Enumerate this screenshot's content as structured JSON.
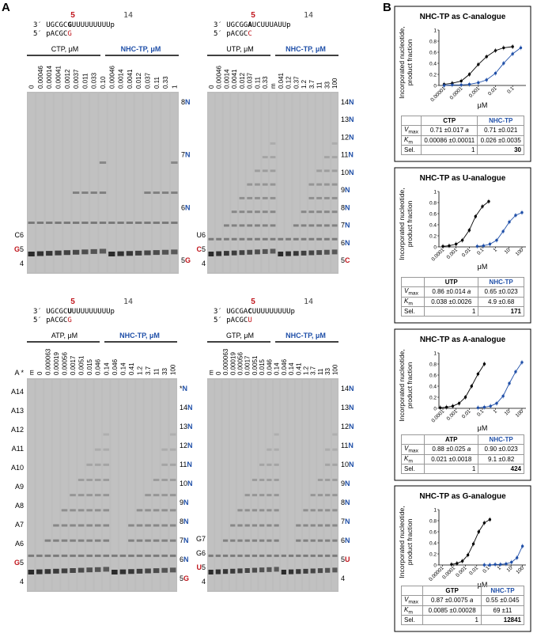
{
  "panel_labels": {
    "a": "A",
    "b": "B"
  },
  "colors": {
    "red": "#c0141b",
    "blue": "#1f4fa8",
    "gel_bg": "#bdbdbd"
  },
  "gels": [
    {
      "id": "C",
      "template": {
        "prefix": "3′ UGCGC",
        "bold": "G",
        "suffix": "UUUUUUUUUp",
        "pos5": "5",
        "pos14": "14"
      },
      "primer": {
        "prefix": "5′ pACGC",
        "last": "G"
      },
      "left_header": "CTP, μM",
      "right_header": "NHC-TP, μM",
      "left_lanes": [
        "0",
        "0.00046",
        "0.00014",
        "0.00041",
        "0.0012",
        "0.0037",
        "0.011",
        "0.033",
        "0.10"
      ],
      "right_lanes": [
        "0.00046",
        "0.0014",
        "0.0041",
        "0.012",
        "0.037",
        "0.11",
        "0.33",
        "1"
      ],
      "left_bands": [
        {
          "t": "C6"
        },
        {
          "t": "G5",
          "red": "G",
          "rest": "5"
        },
        {
          "t": "4"
        }
      ],
      "right_bands": [
        {
          "t": "8N"
        },
        {
          "t": "7N"
        },
        {
          "t": "6N"
        },
        {
          "t": "5G",
          "num": "5",
          "red": "G"
        }
      ]
    },
    {
      "id": "U",
      "template": {
        "prefix": "3′ UGCGG",
        "bold": "A",
        "suffix": "UCUUUAUUp",
        "pos5": "5",
        "pos14": "14"
      },
      "primer": {
        "prefix": "5′ pACGC",
        "last": "C"
      },
      "left_header": "UTP, μM",
      "right_header": "NHC-TP, μM",
      "left_lanes": [
        "0",
        "0.00046",
        "0.0014",
        "0.0041",
        "0.012",
        "0.037",
        "0.11",
        "0.33",
        "m"
      ],
      "right_lanes": [
        "0.041",
        "0.12",
        "0.37",
        "1.2",
        "3.7",
        "11",
        "33",
        "100"
      ],
      "left_bands": [
        {
          "t": "U6"
        },
        {
          "t": "C5",
          "red": "C",
          "rest": "5"
        },
        {
          "t": "4"
        }
      ],
      "right_bands": [
        {
          "t": "14N"
        },
        {
          "t": "13N"
        },
        {
          "t": "12N"
        },
        {
          "t": "11N"
        },
        {
          "t": "10N"
        },
        {
          "t": "9N"
        },
        {
          "t": "8N"
        },
        {
          "t": "7N"
        },
        {
          "t": "6N"
        },
        {
          "t": "5C",
          "num": "5",
          "red": "C"
        }
      ]
    },
    {
      "id": "A",
      "template": {
        "prefix": "3′ UGCGC",
        "bold": "U",
        "suffix": "UUUUUUUUUp",
        "pos5": "5",
        "pos14": "14"
      },
      "primer": {
        "prefix": "5′ pACGC",
        "last": "G"
      },
      "left_header": "ATP, μM",
      "right_header": "NHC-TP, μM",
      "left_lanes": [
        "m",
        "0",
        "0.000063",
        "0.00019",
        "0.00056",
        "0.0017",
        "0.0051",
        "0.015",
        "0.046",
        "0.14"
      ],
      "right_lanes": [
        "0.046",
        "0.14",
        "0.41",
        "1.2",
        "3.7",
        "11",
        "33",
        "100"
      ],
      "left_bands": [
        {
          "t": "A *"
        },
        {
          "t": "A14"
        },
        {
          "t": "A13"
        },
        {
          "t": "A12"
        },
        {
          "t": "A11"
        },
        {
          "t": "A10"
        },
        {
          "t": "A9"
        },
        {
          "t": "A8"
        },
        {
          "t": "A7"
        },
        {
          "t": "A6"
        },
        {
          "t": "G5",
          "red": "G",
          "rest": "5"
        },
        {
          "t": "4"
        }
      ],
      "right_bands": [
        {
          "t": "*N"
        },
        {
          "t": "14N"
        },
        {
          "t": "13N"
        },
        {
          "t": "12N"
        },
        {
          "t": "11N"
        },
        {
          "t": "10N"
        },
        {
          "t": "9N"
        },
        {
          "t": "8N"
        },
        {
          "t": "7N"
        },
        {
          "t": "6N"
        },
        {
          "t": "5G",
          "num": "5",
          "red": "G"
        }
      ]
    },
    {
      "id": "G",
      "template": {
        "prefix": "3′ UGCGA",
        "bold": "C",
        "suffix": "UUUUUUUUUp",
        "pos5": "5",
        "pos14": "14"
      },
      "primer": {
        "prefix": "5′ pACGC",
        "last": "U"
      },
      "left_header": "GTP, μM",
      "right_header": "NHC-TP, μM",
      "left_lanes": [
        "m",
        "0",
        "0.000063",
        "0.00019",
        "0.00056",
        "0.0017",
        "0.0051",
        "0.015",
        "0.046",
        "0.14"
      ],
      "right_lanes": [
        "0.046",
        "0.14",
        "0.41",
        "1.2",
        "3.7",
        "11",
        "33",
        "100"
      ],
      "left_bands": [
        {
          "t": "G7"
        },
        {
          "t": "G6"
        },
        {
          "t": "U5",
          "red": "U",
          "rest": "5"
        },
        {
          "t": "4"
        }
      ],
      "right_bands": [
        {
          "t": "14N"
        },
        {
          "t": "13N"
        },
        {
          "t": "12N"
        },
        {
          "t": "11N"
        },
        {
          "t": "10N"
        },
        {
          "t": "9N"
        },
        {
          "t": "8N"
        },
        {
          "t": "7N"
        },
        {
          "t": "6N"
        },
        {
          "t": "5U",
          "num": "5",
          "red": "U"
        },
        {
          "t": "4"
        }
      ]
    }
  ],
  "kinetics": [
    {
      "title": "NHC-TP as C-analogue",
      "ylabel1": "Incorporated nucleotide,",
      "ylabel2": "product fraction",
      "xlabel": "μM",
      "xticks": [
        "0.00001",
        "0.0001",
        "0.001",
        "0.01",
        "0.1"
      ],
      "yticks": [
        "0",
        "0.2",
        "0.4",
        "0.6",
        "0.8",
        "1"
      ],
      "table": {
        "col1": "CTP",
        "col2": "NHC-TP",
        "rows": [
          {
            "label": "V",
            "sub": "max",
            "v1": "0.71 ±0.017",
            "sup": "a",
            "v2": "0.71 ±0.021"
          },
          {
            "label": "K",
            "sub": "m",
            "v1": "0.00086 ±0.00011",
            "v2": "0.026 ±0.0035"
          },
          {
            "label": "Sel.",
            "v1": "1",
            "v2": "30"
          }
        ]
      }
    },
    {
      "title": "NHC-TP as U-analogue",
      "ylabel1": "Incorporated nucleotide,",
      "ylabel2": "product fraction",
      "xlabel": "μM",
      "xticks": [
        "0.0001",
        "0.001",
        "0.01",
        "0.1",
        "1",
        "10",
        "100"
      ],
      "yticks": [
        "0",
        "0.2",
        "0.4",
        "0.6",
        "0.8",
        "1"
      ],
      "table": {
        "col1": "UTP",
        "col2": "NHC-TP",
        "rows": [
          {
            "label": "V",
            "sub": "max",
            "v1": "0.86 ±0.014",
            "sup": "a",
            "v2": "0.65 ±0.023"
          },
          {
            "label": "K",
            "sub": "m",
            "v1": "0.038 ±0.0026",
            "v2": "4.9 ±0.68"
          },
          {
            "label": "Sel.",
            "v1": "1",
            "v2": "171"
          }
        ]
      }
    },
    {
      "title": "NHC-TP as A-analogue",
      "ylabel1": "Incorporated nucleotide,",
      "ylabel2": "product fraction",
      "xlabel": "μM",
      "xticks": [
        "0.0001",
        "0.001",
        "0.01",
        "0.1",
        "1",
        "10",
        "100"
      ],
      "yticks": [
        "0",
        "0.2",
        "0.4",
        "0.6",
        "0.8",
        "1"
      ],
      "table": {
        "col1": "ATP",
        "col2": "NHC-TP",
        "rows": [
          {
            "label": "V",
            "sub": "max",
            "v1": "0.88 ±0.025",
            "sup": "a",
            "v2": "0.90 ±0.023"
          },
          {
            "label": "K",
            "sub": "m",
            "v1": "0.021 ±0.0018",
            "v2": "9.1 ±0.82"
          },
          {
            "label": "Sel.",
            "v1": "1",
            "v2": "424"
          }
        ]
      }
    },
    {
      "title": "NHC-TP as G-analogue",
      "ylabel1": "Incorporated nucleotide,",
      "ylabel2": "product fraction",
      "xlabel": "μM",
      "xticks": [
        "0.00001",
        "0.0001",
        "0.001",
        "0.01",
        "0.1",
        "1",
        "10",
        "100"
      ],
      "yticks": [
        "0",
        "0.2",
        "0.4",
        "0.6",
        "0.8",
        "1"
      ],
      "table": {
        "col1": "GTP",
        "col2": "NHC-TP",
        "rows": [
          {
            "label": "V",
            "sub": "max",
            "v1": "0.87 ±0.0075",
            "sup": "a",
            "v2": "0.55 ±0.045"
          },
          {
            "label": "K",
            "sub": "m",
            "v1": "0.0085 ±0.00028",
            "v2": "69 ±11"
          },
          {
            "label": "Sel.",
            "v1": "1",
            "v2": "12841"
          }
        ]
      }
    }
  ],
  "chart_data": [
    {
      "type": "scatter",
      "title": "NHC-TP as C-analogue",
      "xlabel": "μM",
      "ylabel": "Incorporated nucleotide, product fraction",
      "xscale": "log",
      "xlim": [
        5e-06,
        0.6
      ],
      "ylim": [
        0,
        1
      ],
      "series": [
        {
          "name": "CTP",
          "color": "#000000",
          "x": [
            1e-05,
            3e-05,
            0.0001,
            0.0003,
            0.001,
            0.003,
            0.01,
            0.03,
            0.1
          ],
          "y": [
            0.02,
            0.04,
            0.08,
            0.2,
            0.38,
            0.52,
            0.63,
            0.68,
            0.7
          ]
        },
        {
          "name": "NHC-TP",
          "color": "#1f4fa8",
          "x": [
            1e-05,
            3e-05,
            0.0001,
            0.0003,
            0.001,
            0.003,
            0.01,
            0.03,
            0.1,
            0.3
          ],
          "y": [
            0.0,
            0.01,
            0.01,
            0.02,
            0.05,
            0.1,
            0.22,
            0.4,
            0.57,
            0.68
          ]
        }
      ]
    },
    {
      "type": "scatter",
      "title": "NHC-TP as U-analogue",
      "xlabel": "μM",
      "ylabel": "Incorporated nucleotide, product fraction",
      "xscale": "log",
      "xlim": [
        5e-05,
        200
      ],
      "ylim": [
        0,
        1
      ],
      "series": [
        {
          "name": "UTP",
          "color": "#000000",
          "x": [
            0.0001,
            0.0003,
            0.001,
            0.003,
            0.01,
            0.03,
            0.1,
            0.3
          ],
          "y": [
            0.01,
            0.02,
            0.05,
            0.12,
            0.3,
            0.55,
            0.73,
            0.82
          ]
        },
        {
          "name": "NHC-TP",
          "color": "#1f4fa8",
          "x": [
            0.04,
            0.12,
            0.37,
            1.2,
            3.7,
            11,
            33,
            100
          ],
          "y": [
            0.01,
            0.02,
            0.05,
            0.12,
            0.28,
            0.45,
            0.57,
            0.62
          ]
        }
      ]
    },
    {
      "type": "scatter",
      "title": "NHC-TP as A-analogue",
      "xlabel": "μM",
      "ylabel": "Incorporated nucleotide, product fraction",
      "xscale": "log",
      "xlim": [
        5e-05,
        200
      ],
      "ylim": [
        0,
        1
      ],
      "series": [
        {
          "name": "ATP",
          "color": "#000000",
          "x": [
            6.3e-05,
            0.00019,
            0.00056,
            0.0017,
            0.0051,
            0.015,
            0.046,
            0.14
          ],
          "y": [
            0.01,
            0.02,
            0.04,
            0.09,
            0.2,
            0.4,
            0.62,
            0.8
          ]
        },
        {
          "name": "NHC-TP",
          "color": "#1f4fa8",
          "x": [
            0.046,
            0.14,
            0.41,
            1.2,
            3.7,
            11,
            33,
            100
          ],
          "y": [
            0.01,
            0.02,
            0.04,
            0.09,
            0.22,
            0.45,
            0.66,
            0.83
          ]
        }
      ]
    },
    {
      "type": "scatter",
      "title": "NHC-TP as G-analogue",
      "xlabel": "μM",
      "ylabel": "Incorporated nucleotide, product fraction",
      "xscale": "log",
      "xlim": [
        5e-06,
        200
      ],
      "ylim": [
        0,
        1
      ],
      "series": [
        {
          "name": "GTP",
          "color": "#000000",
          "x": [
            6.3e-05,
            0.00019,
            0.00056,
            0.0017,
            0.0051,
            0.015,
            0.046,
            0.14
          ],
          "y": [
            0.01,
            0.03,
            0.07,
            0.18,
            0.38,
            0.6,
            0.76,
            0.82
          ]
        },
        {
          "name": "NHC-TP",
          "color": "#1f4fa8",
          "x": [
            0.046,
            0.14,
            0.41,
            1.2,
            3.7,
            11,
            33,
            100
          ],
          "y": [
            0.0,
            0.0,
            0.01,
            0.01,
            0.02,
            0.05,
            0.13,
            0.34
          ]
        }
      ]
    }
  ]
}
